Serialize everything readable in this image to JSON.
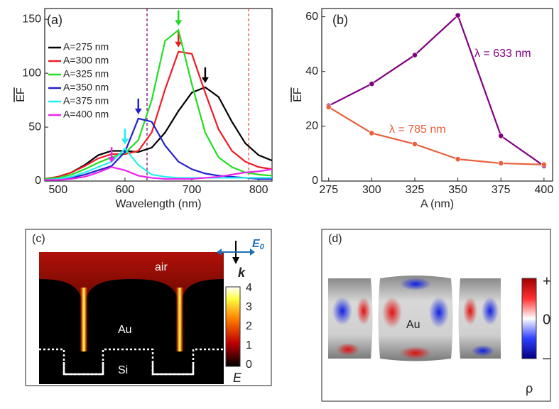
{
  "chart_data": [
    {
      "type": "line",
      "panel_label": "(a)",
      "x_label": "Wavelength (nm)",
      "y_label": "EF",
      "x": [
        480,
        500,
        520,
        540,
        560,
        580,
        600,
        620,
        640,
        660,
        680,
        700,
        720,
        740,
        760,
        780,
        800,
        820
      ],
      "series": [
        {
          "name": "A=275 nm",
          "color": "#000000",
          "values": [
            2,
            4,
            8,
            15,
            24,
            28,
            28,
            27,
            31,
            45,
            65,
            82,
            87,
            78,
            55,
            35,
            24,
            19
          ]
        },
        {
          "name": "A=300 nm",
          "color": "#ee1c25",
          "values": [
            2,
            4,
            8,
            14,
            21,
            25,
            25,
            28,
            45,
            85,
            120,
            118,
            82,
            48,
            28,
            18,
            13,
            11
          ]
        },
        {
          "name": "A=325 nm",
          "color": "#22dd22",
          "values": [
            2,
            3,
            6,
            11,
            17,
            22,
            26,
            38,
            75,
            130,
            140,
            90,
            45,
            22,
            13,
            8,
            6,
            5
          ]
        },
        {
          "name": "A=350 nm",
          "color": "#2222cc",
          "values": [
            1,
            2,
            3,
            6,
            10,
            14,
            27,
            58,
            55,
            33,
            18,
            11,
            7,
            5,
            4,
            3,
            2,
            2
          ]
        },
        {
          "name": "A=375 nm",
          "color": "#22eeee",
          "values": [
            1,
            2,
            4,
            8,
            13,
            18,
            30,
            15,
            6,
            4,
            3,
            3,
            3,
            3,
            3,
            3,
            3,
            3
          ]
        },
        {
          "name": "A=400 nm",
          "color": "#ee22ee",
          "values": [
            1,
            1,
            2,
            4,
            8,
            13,
            10,
            5,
            3,
            2,
            2,
            2,
            3,
            4,
            6,
            8,
            9,
            11
          ]
        }
      ],
      "vlines": [
        {
          "value": 633,
          "color": "#800080"
        },
        {
          "value": 785,
          "color": "#e8503c"
        }
      ],
      "xlim": [
        480,
        820
      ],
      "xticks": [
        500,
        600,
        700,
        800
      ],
      "ylim": [
        0,
        160
      ],
      "yticks": [
        0,
        50,
        100,
        150
      ]
    },
    {
      "type": "line",
      "panel_label": "(b)",
      "x_label": "A (nm)",
      "y_label": "EF",
      "x": [
        275,
        300,
        325,
        350,
        375,
        400
      ],
      "series": [
        {
          "name": "λ = 633 nm",
          "color": "#800080",
          "values": [
            27.5,
            35.5,
            46,
            60.5,
            16.5,
            5.5
          ]
        },
        {
          "name": "λ = 785 nm",
          "color": "#e8603c",
          "values": [
            27,
            17.5,
            13.5,
            8,
            6.5,
            6
          ]
        }
      ],
      "xlim": [
        271,
        405
      ],
      "xticks": [
        275,
        300,
        325,
        350,
        375,
        400
      ],
      "ylim": [
        0,
        63
      ],
      "yticks": [
        0,
        20,
        40,
        60
      ]
    }
  ],
  "panel_c": {
    "label": "(c)",
    "air": "air",
    "metal": "Au",
    "substrate": "Si",
    "field": "E",
    "field_sub": "0",
    "wavevector": "k",
    "colorbar_ticks": [
      "0",
      "1",
      "2",
      "3",
      "4"
    ],
    "colorbar_label": "E"
  },
  "panel_d": {
    "label": "(d)",
    "metal": "Au",
    "colorbar_ticks": [
      "+",
      "0",
      "–"
    ],
    "colorbar_label": "ρ"
  }
}
